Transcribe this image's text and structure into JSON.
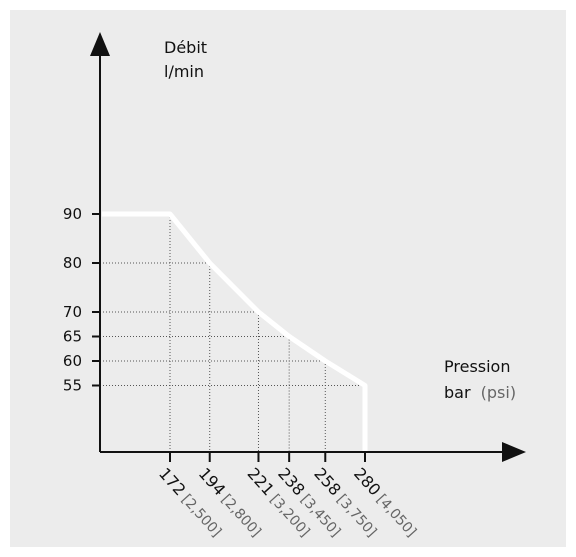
{
  "chart_data": {
    "type": "line",
    "y_axis": {
      "title_line1": "Débit",
      "title_line2": "l/min",
      "ticks": [
        90,
        80,
        70,
        65,
        60,
        55
      ]
    },
    "x_axis": {
      "title_main": "Pression",
      "title_bar": "bar",
      "title_psi": "(psi)",
      "ticks": [
        {
          "bar": 172,
          "psi": "[2,500]"
        },
        {
          "bar": 194,
          "psi": "[2,800]"
        },
        {
          "bar": 221,
          "psi": "[3,200]"
        },
        {
          "bar": 238,
          "psi": "[3,450]"
        },
        {
          "bar": 258,
          "psi": "[3,750]"
        },
        {
          "bar": 280,
          "psi": "[4,050]"
        }
      ]
    },
    "series": [
      {
        "points": [
          {
            "x": 172,
            "y": 90
          },
          {
            "x": 194,
            "y": 80
          },
          {
            "x": 221,
            "y": 70
          },
          {
            "x": 238,
            "y": 65
          },
          {
            "x": 258,
            "y": 60
          },
          {
            "x": 280,
            "y": 55
          }
        ]
      }
    ],
    "colors": {
      "background": "#ececec",
      "curve": "#ffffff",
      "axis": "#111111",
      "grid": "#555555"
    }
  }
}
